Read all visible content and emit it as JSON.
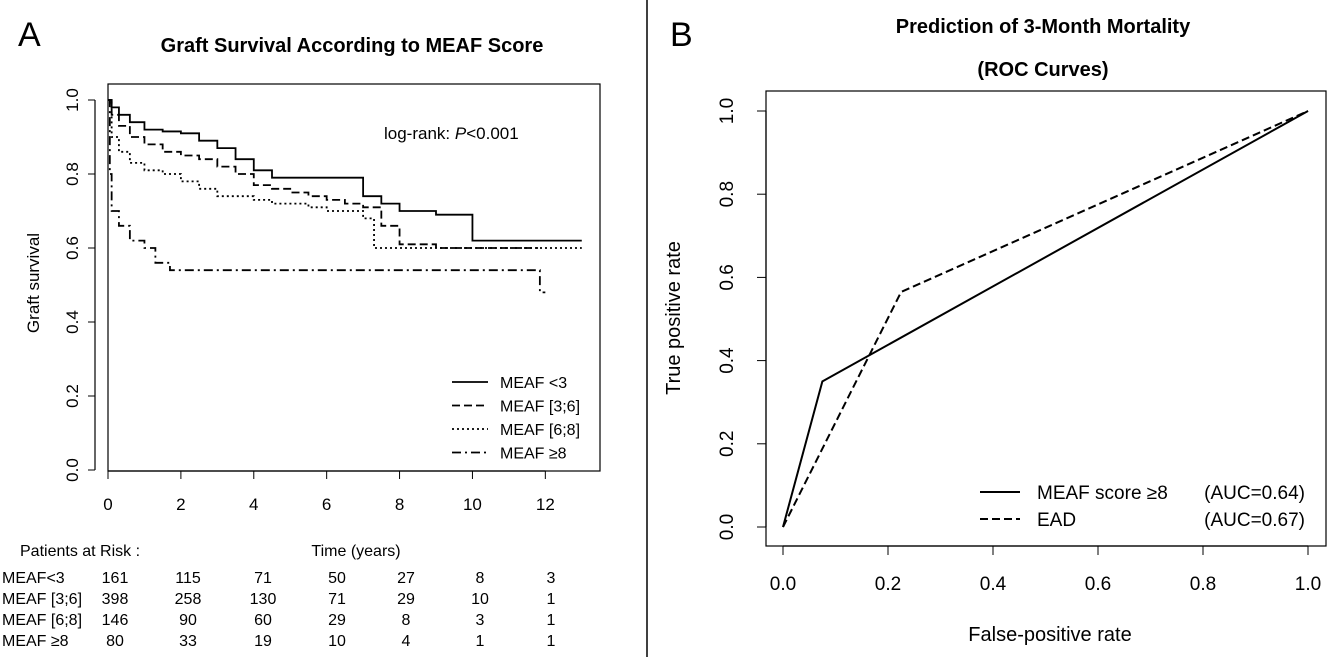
{
  "panelA": {
    "letter": "A",
    "chart_data": {
      "type": "line",
      "title": "Graft Survival According to MEAF Score",
      "xlabel": "Time (years)",
      "ylabel": "Graft survival",
      "xlim": [
        0,
        13
      ],
      "ylim": [
        0,
        1.0
      ],
      "xticks": [
        "0",
        "2",
        "4",
        "6",
        "8",
        "10",
        "12"
      ],
      "yticks": [
        "0.0",
        "0.2",
        "0.4",
        "0.6",
        "0.8",
        "1.0"
      ],
      "grid": false,
      "legend": "bottom-right",
      "annotation_prefix": "log-rank: ",
      "annotation_p": "P",
      "annotation_suffix": "<0.001",
      "series": [
        {
          "name": "MEAF <3",
          "dash": "solid",
          "x": [
            0,
            0.1,
            0.3,
            0.6,
            1.0,
            1.5,
            2.0,
            2.5,
            3.0,
            3.5,
            4.0,
            4.5,
            5.0,
            5.5,
            6.0,
            6.5,
            7.0,
            7.5,
            8.0,
            9.0,
            10.0,
            10.5,
            13.0
          ],
          "y": [
            1.0,
            0.98,
            0.96,
            0.94,
            0.92,
            0.915,
            0.91,
            0.89,
            0.87,
            0.84,
            0.81,
            0.79,
            0.79,
            0.79,
            0.79,
            0.79,
            0.74,
            0.72,
            0.7,
            0.69,
            0.62,
            0.62,
            0.62
          ]
        },
        {
          "name": "MEAF [3;6]",
          "dash": "dashed",
          "x": [
            0,
            0.1,
            0.3,
            0.6,
            1.0,
            1.5,
            2.0,
            2.5,
            3.0,
            3.5,
            4.0,
            4.5,
            5.0,
            5.5,
            6.0,
            6.5,
            7.0,
            7.5,
            8.0,
            9.0,
            10.0,
            11.0,
            11.8
          ],
          "y": [
            1.0,
            0.96,
            0.93,
            0.9,
            0.88,
            0.86,
            0.85,
            0.84,
            0.82,
            0.8,
            0.77,
            0.76,
            0.75,
            0.74,
            0.73,
            0.72,
            0.71,
            0.66,
            0.61,
            0.6,
            0.6,
            0.6,
            0.6
          ]
        },
        {
          "name": "MEAF [6;8]",
          "dash": "dotted",
          "x": [
            0,
            0.1,
            0.3,
            0.6,
            1.0,
            1.5,
            2.0,
            2.5,
            3.0,
            3.5,
            4.0,
            4.5,
            5.0,
            5.5,
            6.0,
            6.5,
            7.0,
            7.3,
            8.0,
            9.0,
            10.0,
            11.0,
            13.0
          ],
          "y": [
            1.0,
            0.9,
            0.86,
            0.83,
            0.81,
            0.8,
            0.78,
            0.76,
            0.74,
            0.74,
            0.73,
            0.72,
            0.72,
            0.71,
            0.7,
            0.7,
            0.68,
            0.6,
            0.6,
            0.6,
            0.6,
            0.6,
            0.6
          ]
        },
        {
          "name": "MEAF ≥8",
          "dash": "dashdot",
          "x": [
            0,
            0.05,
            0.1,
            0.3,
            0.6,
            1.0,
            1.3,
            1.7,
            2.0,
            3.0,
            4.0,
            6.0,
            8.0,
            10.0,
            11.0,
            11.8,
            11.85,
            12.0
          ],
          "y": [
            1.0,
            0.8,
            0.7,
            0.66,
            0.62,
            0.6,
            0.56,
            0.54,
            0.54,
            0.54,
            0.54,
            0.54,
            0.54,
            0.54,
            0.54,
            0.54,
            0.48,
            0.48
          ]
        }
      ]
    },
    "risk_table": {
      "header": "Patients at Risk :",
      "rows": [
        {
          "label": "MEAF<3",
          "values": [
            "161",
            "115",
            "71",
            "50",
            "27",
            "8",
            "3"
          ]
        },
        {
          "label": "MEAF [3;6]",
          "values": [
            "398",
            "258",
            "130",
            "71",
            "29",
            "10",
            "1"
          ]
        },
        {
          "label": "MEAF [6;8]",
          "values": [
            "146",
            "90",
            "60",
            "29",
            "8",
            "3",
            "1"
          ]
        },
        {
          "label": "MEAF ≥8",
          "values": [
            "80",
            "33",
            "19",
            "10",
            "4",
            "1",
            "1"
          ]
        }
      ]
    }
  },
  "panelB": {
    "letter": "B",
    "chart_data": {
      "type": "line",
      "title_line1": "Prediction of 3-Month Mortality",
      "title_line2": "(ROC Curves)",
      "xlabel": "False-positive rate",
      "ylabel": "True positive rate",
      "xlim": [
        0,
        1.0
      ],
      "ylim": [
        0,
        1.0
      ],
      "xticks": [
        "0.0",
        "0.2",
        "0.4",
        "0.6",
        "0.8",
        "1.0"
      ],
      "yticks": [
        "0.0",
        "0.2",
        "0.4",
        "0.6",
        "0.8",
        "1.0"
      ],
      "grid": false,
      "legend": "bottom-right",
      "series": [
        {
          "name": "MEAF score ≥8",
          "auc": "(AUC=0.64)",
          "dash": "solid",
          "x": [
            0.0,
            0.075,
            1.0
          ],
          "y": [
            0.0,
            0.35,
            1.0
          ]
        },
        {
          "name": "EAD",
          "auc": "(AUC=0.67)",
          "dash": "dashed",
          "x": [
            0.0,
            0.225,
            1.0
          ],
          "y": [
            0.0,
            0.565,
            1.0
          ]
        }
      ]
    }
  }
}
